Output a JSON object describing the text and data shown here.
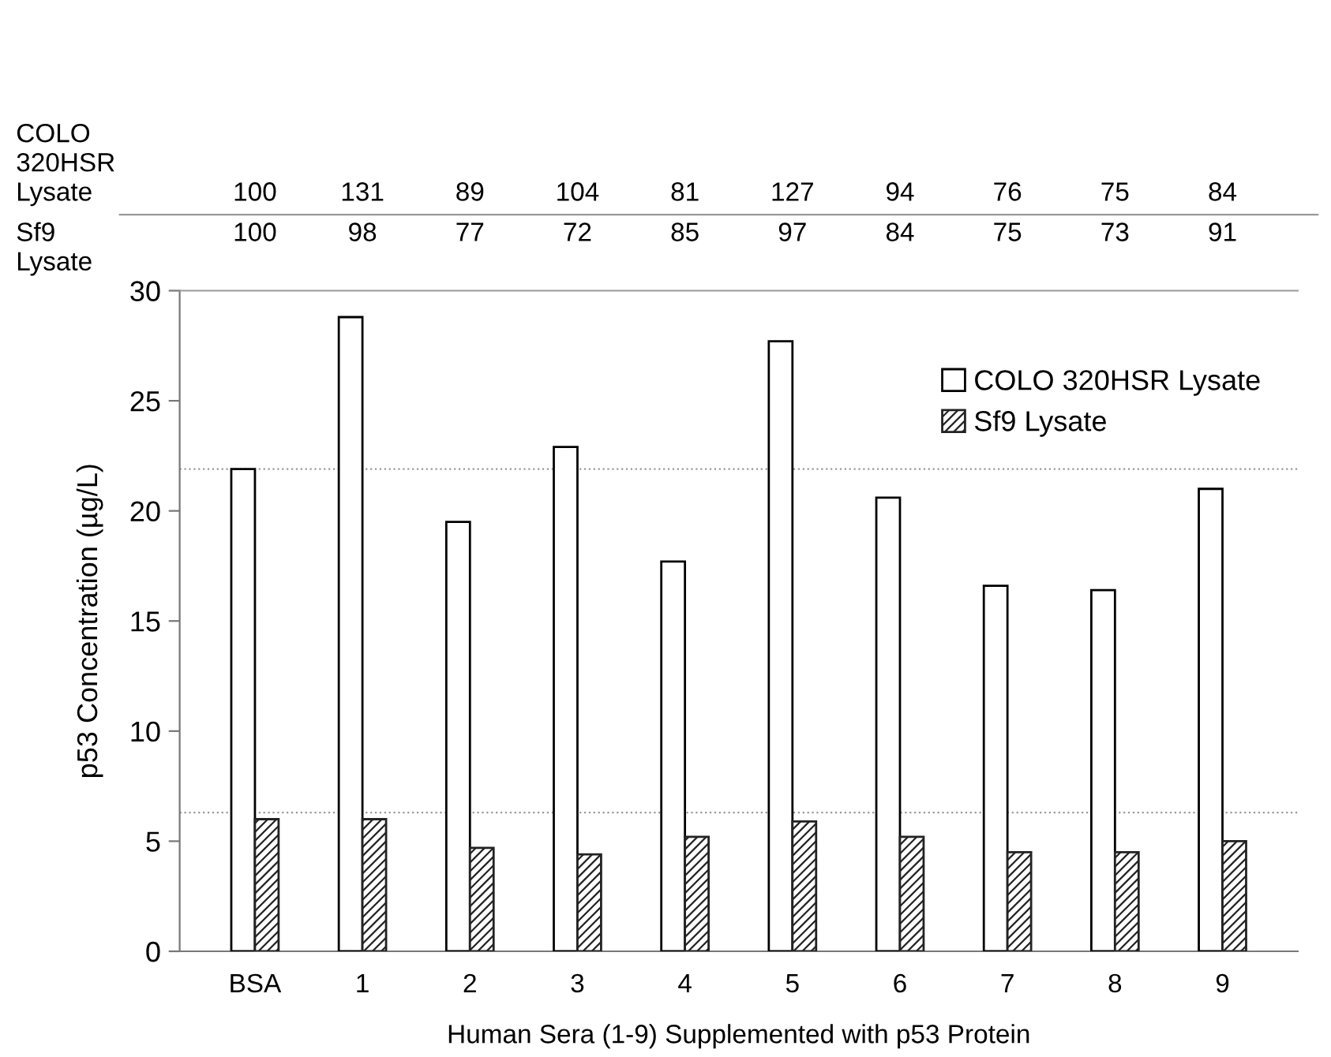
{
  "chart_data": {
    "type": "bar",
    "xlabel": "Human Sera (1-9) Supplemented with p53 Protein",
    "ylabel": "p53 Concentration (µg/L)",
    "categories": [
      "BSA",
      "1",
      "2",
      "3",
      "4",
      "5",
      "6",
      "7",
      "8",
      "9"
    ],
    "series": [
      {
        "name": "COLO 320HSR Lysate",
        "color": "#ffffff",
        "values": [
          21.9,
          28.8,
          19.5,
          22.9,
          17.7,
          27.7,
          20.6,
          16.6,
          16.4,
          21.0
        ]
      },
      {
        "name": "Sf9 Lysate",
        "color": "#222222",
        "values": [
          6.0,
          6.0,
          4.7,
          4.4,
          5.2,
          5.9,
          5.2,
          4.5,
          4.5,
          5.0
        ]
      }
    ],
    "ylim": [
      0,
      30
    ],
    "yticks": [
      0,
      5,
      10,
      15,
      20,
      25,
      30
    ],
    "ref_lines": [
      {
        "axis": "y",
        "value": 21.9,
        "label": null,
        "color": "#999999",
        "line_style": "dotted"
      },
      {
        "axis": "y",
        "value": 6.3,
        "label": null,
        "color": "#999999",
        "line_style": "dotted"
      }
    ],
    "legend": "top right",
    "annotations": [
      "COLO\n320HSR\nLysate",
      "100",
      "131",
      "89",
      "104",
      "81",
      "127",
      "94",
      "76",
      "75",
      "84",
      "Sf9\nLysate",
      "100",
      "98",
      "77",
      "72",
      "85",
      "97",
      "84",
      "75",
      "73",
      "91"
    ]
  }
}
